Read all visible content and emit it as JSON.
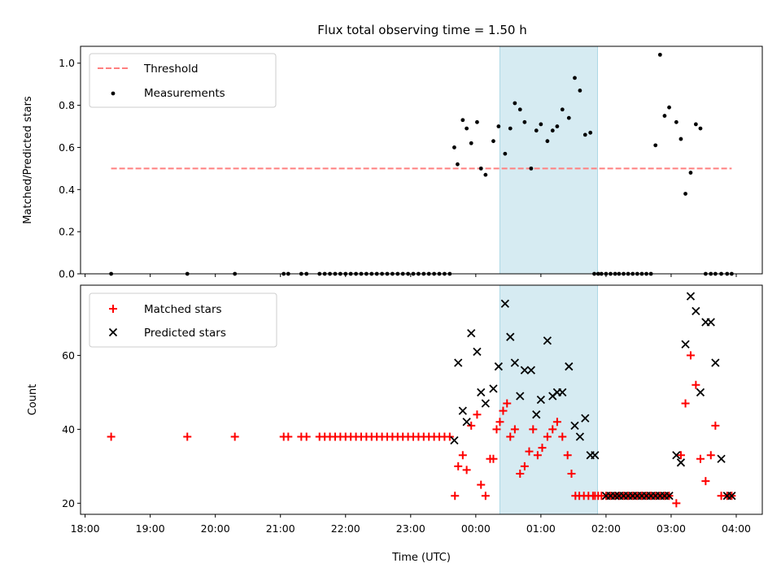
{
  "title": "Flux total observing time = 1.50 h",
  "colors": {
    "threshold": "#ff7f7f",
    "measurement": "#000000",
    "matched": "#ff0000",
    "predicted": "#000000",
    "band_fill": "#add8e6"
  },
  "chart_data": [
    {
      "type": "scatter",
      "ylabel": "Matched/Predicted stars",
      "ylim": [
        0,
        1.08
      ],
      "yticks": [
        0,
        0.2,
        0.4,
        0.6,
        0.8,
        1.0
      ],
      "ytick_labels": [
        "0.0",
        "0.2",
        "0.4",
        "0.6",
        "0.8",
        "1.0"
      ],
      "legend": {
        "placement": "top-left",
        "entries": [
          "Threshold",
          "Measurements"
        ]
      },
      "threshold": {
        "name": "Threshold",
        "value": 0.5,
        "x_range": [
          18.4,
          27.93
        ]
      },
      "highlight_band": [
        24.37,
        25.87
      ],
      "series": [
        {
          "name": "Measurements",
          "marker": "dot",
          "x": [
            18.4,
            19.57,
            20.3,
            21.05,
            21.12,
            21.32,
            21.4,
            21.6,
            21.68,
            21.76,
            21.84,
            21.92,
            22.0,
            22.08,
            22.16,
            22.24,
            22.32,
            22.4,
            22.48,
            22.56,
            22.64,
            22.72,
            22.8,
            22.88,
            22.96,
            23.04,
            23.12,
            23.2,
            23.28,
            23.36,
            23.44,
            23.52,
            23.6,
            23.67,
            23.72,
            23.8,
            23.86,
            23.93,
            24.02,
            24.08,
            24.15,
            24.27,
            24.35,
            24.45,
            24.53,
            24.6,
            24.68,
            24.75,
            24.85,
            24.93,
            25.0,
            25.1,
            25.18,
            25.25,
            25.33,
            25.43,
            25.52,
            25.6,
            25.68,
            25.76,
            25.82,
            25.88,
            25.93,
            26.0,
            26.07,
            26.14,
            26.2,
            26.27,
            26.34,
            26.41,
            26.48,
            26.55,
            26.62,
            26.69,
            26.76,
            26.83,
            26.9,
            26.97,
            27.08,
            27.15,
            27.22,
            27.3,
            27.38,
            27.45,
            27.53,
            27.61,
            27.68,
            27.77,
            27.86,
            27.93
          ],
          "y": [
            0,
            0,
            0,
            0,
            0,
            0,
            0,
            0,
            0,
            0,
            0,
            0,
            0,
            0,
            0,
            0,
            0,
            0,
            0,
            0,
            0,
            0,
            0,
            0,
            0,
            0,
            0,
            0,
            0,
            0,
            0,
            0,
            0,
            0.6,
            0.52,
            0.73,
            0.69,
            0.62,
            0.72,
            0.5,
            0.47,
            0.63,
            0.7,
            0.57,
            0.69,
            0.81,
            0.78,
            0.72,
            0.5,
            0.68,
            0.71,
            0.63,
            0.68,
            0.7,
            0.78,
            0.74,
            0.93,
            0.87,
            0.66,
            0.67,
            0,
            0,
            0,
            0,
            0,
            0,
            0,
            0,
            0,
            0,
            0,
            0,
            0,
            0,
            0.61,
            1.04,
            0.75,
            0.79,
            0.72,
            0.64,
            0.38,
            0.48,
            0.71,
            0.69,
            0,
            0,
            0,
            0,
            0,
            0
          ]
        }
      ]
    },
    {
      "type": "scatter",
      "xlabel": "Time (UTC)",
      "ylabel": "Count",
      "xlim": [
        17.93,
        28.4
      ],
      "xticks": [
        18,
        19,
        20,
        21,
        22,
        23,
        24,
        25,
        26,
        27,
        28
      ],
      "xtick_labels": [
        "18:00",
        "19:00",
        "20:00",
        "21:00",
        "22:00",
        "23:00",
        "00:00",
        "01:00",
        "02:00",
        "03:00",
        "04:00"
      ],
      "ylim": [
        17,
        79
      ],
      "yticks": [
        20,
        40,
        60
      ],
      "ytick_labels": [
        "20",
        "40",
        "60"
      ],
      "legend": {
        "placement": "top-left",
        "entries": [
          "Matched stars",
          "Predicted stars"
        ]
      },
      "highlight_band": [
        24.37,
        25.87
      ],
      "series": [
        {
          "name": "Matched stars",
          "marker": "plus",
          "x": [
            18.4,
            19.57,
            20.3,
            21.05,
            21.12,
            21.32,
            21.4,
            21.6,
            21.68,
            21.76,
            21.84,
            21.92,
            22.0,
            22.08,
            22.16,
            22.24,
            22.32,
            22.4,
            22.48,
            22.56,
            22.64,
            22.72,
            22.8,
            22.88,
            22.96,
            23.04,
            23.12,
            23.2,
            23.28,
            23.36,
            23.44,
            23.52,
            23.6,
            23.68,
            23.73,
            23.8,
            23.86,
            23.93,
            24.02,
            24.08,
            24.15,
            24.22,
            24.27,
            24.32,
            24.37,
            24.42,
            24.48,
            24.53,
            24.6,
            24.68,
            24.75,
            24.82,
            24.88,
            24.95,
            25.02,
            25.1,
            25.18,
            25.25,
            25.33,
            25.41,
            25.47,
            25.53,
            25.59,
            25.66,
            25.73,
            25.8,
            25.83,
            25.88,
            25.93,
            26.0,
            26.07,
            26.14,
            26.2,
            26.27,
            26.34,
            26.41,
            26.48,
            26.55,
            26.62,
            26.69,
            26.76,
            26.83,
            26.9,
            26.97,
            27.08,
            27.15,
            27.22,
            27.3,
            27.38,
            27.45,
            27.53,
            27.61,
            27.68,
            27.77,
            27.86,
            27.93
          ],
          "y": [
            38,
            38,
            38,
            38,
            38,
            38,
            38,
            38,
            38,
            38,
            38,
            38,
            38,
            38,
            38,
            38,
            38,
            38,
            38,
            38,
            38,
            38,
            38,
            38,
            38,
            38,
            38,
            38,
            38,
            38,
            38,
            38,
            38,
            22,
            30,
            33,
            29,
            41,
            44,
            25,
            22,
            32,
            32,
            40,
            42,
            45,
            47,
            38,
            40,
            28,
            30,
            34,
            40,
            33,
            35,
            38,
            40,
            42,
            38,
            33,
            28,
            22,
            22,
            22,
            22,
            22,
            22,
            22,
            22,
            22,
            22,
            22,
            22,
            22,
            22,
            22,
            22,
            22,
            22,
            22,
            22,
            22,
            22,
            22,
            20,
            33,
            47,
            60,
            52,
            32,
            26,
            33,
            41,
            22,
            22,
            22
          ]
        },
        {
          "name": "Predicted stars",
          "marker": "x",
          "x": [
            23.67,
            23.73,
            23.8,
            23.86,
            23.93,
            24.02,
            24.08,
            24.15,
            24.27,
            24.35,
            24.45,
            24.53,
            24.6,
            24.68,
            24.75,
            24.85,
            24.93,
            25.0,
            25.1,
            25.18,
            25.25,
            25.33,
            25.43,
            25.52,
            25.6,
            25.68,
            25.76,
            25.83,
            26.0,
            26.07,
            26.14,
            26.2,
            26.27,
            26.34,
            26.41,
            26.48,
            26.55,
            26.62,
            26.69,
            26.76,
            26.83,
            26.9,
            26.97,
            27.08,
            27.15,
            27.22,
            27.3,
            27.38,
            27.45,
            27.53,
            27.61,
            27.68,
            27.77,
            27.86,
            27.93
          ],
          "y": [
            37,
            58,
            45,
            42,
            66,
            61,
            50,
            47,
            51,
            57,
            74,
            65,
            58,
            49,
            56,
            56,
            44,
            48,
            64,
            49,
            50,
            50,
            57,
            41,
            38,
            43,
            33,
            33,
            22,
            22,
            22,
            22,
            22,
            22,
            22,
            22,
            22,
            22,
            22,
            22,
            22,
            22,
            22,
            33,
            31,
            63,
            76,
            72,
            50,
            69,
            69,
            58,
            32,
            22,
            22
          ]
        }
      ]
    }
  ]
}
